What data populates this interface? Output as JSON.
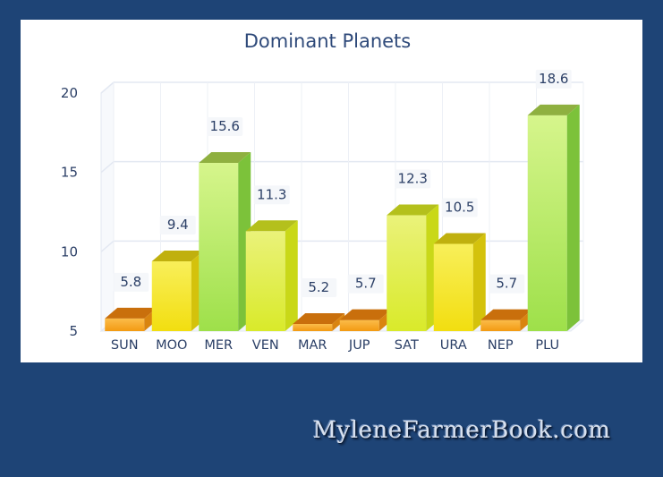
{
  "chart_data": {
    "type": "bar",
    "title": "Dominant Planets",
    "unit_label": "%",
    "categories": [
      "SUN",
      "MOO",
      "MER",
      "VEN",
      "MAR",
      "JUP",
      "SAT",
      "URA",
      "NEP",
      "PLU"
    ],
    "values": [
      5.8,
      9.4,
      15.6,
      11.3,
      5.2,
      5.7,
      12.3,
      10.5,
      5.7,
      18.6
    ],
    "value_labels": [
      "5.8",
      "9.4",
      "15.6",
      "11.3",
      "5.2",
      "5.7",
      "12.3",
      "10.5",
      "5.7",
      "18.6"
    ],
    "yticks": [
      5,
      10,
      15,
      20
    ],
    "ylim": [
      5,
      20
    ],
    "grid": true,
    "style": "3d-column",
    "colors": {
      "low": "#f7a21c",
      "mid": "#f4e31a",
      "high": "#a6e24c",
      "grid": "#e3e8f2",
      "text": "#2b3f66"
    }
  },
  "watermark": "MyleneFarmerBook.com"
}
